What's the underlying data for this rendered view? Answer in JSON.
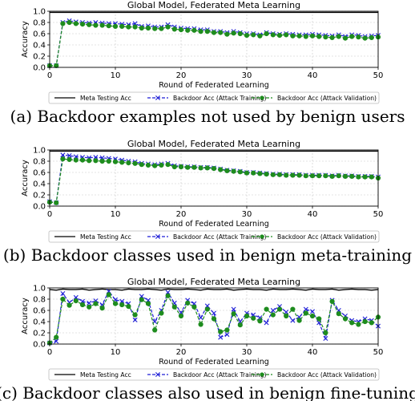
{
  "chart_data": [
    {
      "type": "line",
      "title": "Global Model, Federated Meta Learning",
      "xlabel": "Round of Federated Learning",
      "ylabel": "Accuracy",
      "xlim": [
        0,
        50
      ],
      "ylim": [
        0.0,
        1.0
      ],
      "xticks": [
        "0",
        "10",
        "20",
        "30",
        "40",
        "50"
      ],
      "yticks": [
        "0.0",
        "0.2",
        "0.4",
        "0.6",
        "0.8",
        "1.0"
      ],
      "grid": true,
      "legend_position": "below",
      "caption": "(a) Backdoor examples not used by benign users",
      "series": [
        {
          "name": "Meta Testing Acc",
          "color": "#000000",
          "style": "solid",
          "values": [
            0.98,
            0.98,
            0.98,
            0.98,
            0.98,
            0.98,
            0.98,
            0.98,
            0.98,
            0.98,
            0.98,
            0.98,
            0.98,
            0.98,
            0.98,
            0.98,
            0.98,
            0.98,
            0.98,
            0.98,
            0.98,
            0.98,
            0.98,
            0.98,
            0.98,
            0.98,
            0.98,
            0.98,
            0.98,
            0.98,
            0.98,
            0.98,
            0.98,
            0.98,
            0.98,
            0.98,
            0.98,
            0.98,
            0.98,
            0.98,
            0.98,
            0.98,
            0.98,
            0.98,
            0.98,
            0.98,
            0.98,
            0.98,
            0.98,
            0.98,
            0.98
          ]
        },
        {
          "name": "Backdoor Acc (Attack Training)",
          "color": "#1f1fd6",
          "style": "dashed",
          "marker": "x",
          "values": [
            0.03,
            0.03,
            0.8,
            0.83,
            0.81,
            0.8,
            0.79,
            0.8,
            0.79,
            0.78,
            0.78,
            0.77,
            0.76,
            0.78,
            0.73,
            0.74,
            0.72,
            0.72,
            0.76,
            0.72,
            0.7,
            0.69,
            0.69,
            0.67,
            0.67,
            0.64,
            0.64,
            0.62,
            0.64,
            0.62,
            0.6,
            0.6,
            0.58,
            0.62,
            0.6,
            0.59,
            0.6,
            0.59,
            0.58,
            0.58,
            0.59,
            0.58,
            0.57,
            0.56,
            0.58,
            0.55,
            0.58,
            0.57,
            0.55,
            0.56,
            0.57
          ]
        },
        {
          "name": "Backdoor Acc (Attack Validation)",
          "color": "#1e8c1e",
          "style": "dashed",
          "marker": "o",
          "values": [
            0.03,
            0.03,
            0.78,
            0.8,
            0.78,
            0.77,
            0.76,
            0.75,
            0.75,
            0.74,
            0.73,
            0.73,
            0.72,
            0.72,
            0.7,
            0.7,
            0.69,
            0.69,
            0.72,
            0.68,
            0.67,
            0.66,
            0.66,
            0.64,
            0.64,
            0.62,
            0.62,
            0.59,
            0.61,
            0.6,
            0.57,
            0.58,
            0.56,
            0.6,
            0.58,
            0.57,
            0.58,
            0.56,
            0.56,
            0.55,
            0.56,
            0.55,
            0.54,
            0.53,
            0.55,
            0.52,
            0.55,
            0.54,
            0.52,
            0.53,
            0.54
          ]
        }
      ]
    },
    {
      "type": "line",
      "title": "Global Model, Federated Meta Learning",
      "xlabel": "Round of Federated Learning",
      "ylabel": "Accuracy",
      "xlim": [
        0,
        50
      ],
      "ylim": [
        0.0,
        1.0
      ],
      "xticks": [
        "0",
        "10",
        "20",
        "30",
        "40",
        "50"
      ],
      "yticks": [
        "0.0",
        "0.2",
        "0.4",
        "0.6",
        "0.8",
        "1.0"
      ],
      "grid": true,
      "legend_position": "below",
      "caption": "(b) Backdoor classes used in benign meta-training",
      "series": [
        {
          "name": "Meta Testing Acc",
          "color": "#000000",
          "style": "solid",
          "values": [
            0.98,
            0.98,
            0.98,
            0.98,
            0.98,
            0.98,
            0.98,
            0.98,
            0.98,
            0.98,
            0.98,
            0.98,
            0.98,
            0.98,
            0.98,
            0.98,
            0.98,
            0.98,
            0.98,
            0.98,
            0.98,
            0.98,
            0.98,
            0.98,
            0.98,
            0.98,
            0.98,
            0.98,
            0.98,
            0.98,
            0.98,
            0.98,
            0.98,
            0.98,
            0.98,
            0.98,
            0.98,
            0.98,
            0.98,
            0.98,
            0.98,
            0.98,
            0.98,
            0.98,
            0.98,
            0.98,
            0.98,
            0.98,
            0.98,
            0.98,
            0.98
          ]
        },
        {
          "name": "Backdoor Acc (Attack Training)",
          "color": "#1f1fd6",
          "style": "dashed",
          "marker": "x",
          "values": [
            0.08,
            0.06,
            0.91,
            0.9,
            0.88,
            0.87,
            0.86,
            0.87,
            0.86,
            0.85,
            0.84,
            0.82,
            0.8,
            0.79,
            0.76,
            0.75,
            0.74,
            0.75,
            0.76,
            0.72,
            0.71,
            0.7,
            0.7,
            0.69,
            0.69,
            0.68,
            0.66,
            0.64,
            0.63,
            0.62,
            0.6,
            0.6,
            0.59,
            0.58,
            0.57,
            0.57,
            0.56,
            0.56,
            0.56,
            0.55,
            0.55,
            0.55,
            0.55,
            0.54,
            0.55,
            0.54,
            0.54,
            0.53,
            0.53,
            0.53,
            0.52
          ]
        },
        {
          "name": "Backdoor Acc (Attack Validation)",
          "color": "#1e8c1e",
          "style": "dashed",
          "marker": "o",
          "values": [
            0.07,
            0.06,
            0.84,
            0.83,
            0.82,
            0.82,
            0.81,
            0.81,
            0.8,
            0.8,
            0.79,
            0.78,
            0.77,
            0.76,
            0.74,
            0.73,
            0.72,
            0.73,
            0.74,
            0.7,
            0.7,
            0.69,
            0.69,
            0.68,
            0.68,
            0.67,
            0.65,
            0.63,
            0.62,
            0.61,
            0.59,
            0.59,
            0.58,
            0.57,
            0.56,
            0.56,
            0.55,
            0.55,
            0.55,
            0.54,
            0.54,
            0.54,
            0.54,
            0.53,
            0.54,
            0.53,
            0.53,
            0.52,
            0.52,
            0.52,
            0.5
          ]
        }
      ]
    },
    {
      "type": "line",
      "title": "Global Model, Federated Meta Learning",
      "xlabel": "Round of Federated Learning",
      "ylabel": "Accuracy",
      "xlim": [
        0,
        50
      ],
      "ylim": [
        0.0,
        1.0
      ],
      "xticks": [
        "0",
        "10",
        "20",
        "30",
        "40",
        "50"
      ],
      "yticks": [
        "0.0",
        "0.2",
        "0.4",
        "0.6",
        "0.8",
        "1.0"
      ],
      "grid": true,
      "legend_position": "below",
      "caption": "(c) Backdoor classes also used in benign fine-tuning",
      "series": [
        {
          "name": "Meta Testing Acc",
          "color": "#000000",
          "style": "solid",
          "values": [
            0.97,
            0.96,
            0.98,
            0.97,
            0.97,
            0.98,
            0.96,
            0.97,
            0.98,
            0.97,
            0.97,
            0.96,
            0.98,
            0.97,
            0.97,
            0.98,
            0.97,
            0.96,
            0.98,
            0.97,
            0.97,
            0.98,
            0.97,
            0.96,
            0.98,
            0.97,
            0.97,
            0.98,
            0.96,
            0.97,
            0.98,
            0.97,
            0.97,
            0.96,
            0.98,
            0.97,
            0.97,
            0.98,
            0.97,
            0.96,
            0.98,
            0.97,
            0.97,
            0.98,
            0.96,
            0.97,
            0.98,
            0.97,
            0.97,
            0.96,
            0.97
          ]
        },
        {
          "name": "Backdoor Acc (Attack Training)",
          "color": "#1f1fd6",
          "style": "dashed",
          "marker": "x",
          "values": [
            0.02,
            0.05,
            0.9,
            0.74,
            0.83,
            0.76,
            0.73,
            0.77,
            0.7,
            0.94,
            0.79,
            0.76,
            0.72,
            0.43,
            0.85,
            0.78,
            0.4,
            0.6,
            0.92,
            0.73,
            0.56,
            0.78,
            0.72,
            0.47,
            0.68,
            0.55,
            0.12,
            0.17,
            0.62,
            0.4,
            0.55,
            0.52,
            0.47,
            0.38,
            0.6,
            0.67,
            0.57,
            0.42,
            0.48,
            0.62,
            0.58,
            0.38,
            0.1,
            0.78,
            0.6,
            0.5,
            0.42,
            0.4,
            0.45,
            0.42,
            0.32
          ]
        },
        {
          "name": "Backdoor Acc (Attack Validation)",
          "color": "#1e8c1e",
          "style": "dashed",
          "marker": "o",
          "values": [
            0.02,
            0.12,
            0.8,
            0.69,
            0.77,
            0.7,
            0.66,
            0.72,
            0.64,
            0.88,
            0.72,
            0.7,
            0.67,
            0.52,
            0.79,
            0.72,
            0.25,
            0.55,
            0.86,
            0.66,
            0.5,
            0.73,
            0.66,
            0.35,
            0.62,
            0.45,
            0.22,
            0.25,
            0.54,
            0.34,
            0.5,
            0.46,
            0.41,
            0.62,
            0.52,
            0.62,
            0.5,
            0.62,
            0.42,
            0.55,
            0.5,
            0.45,
            0.2,
            0.76,
            0.54,
            0.45,
            0.38,
            0.35,
            0.4,
            0.38,
            0.48
          ]
        }
      ]
    }
  ]
}
